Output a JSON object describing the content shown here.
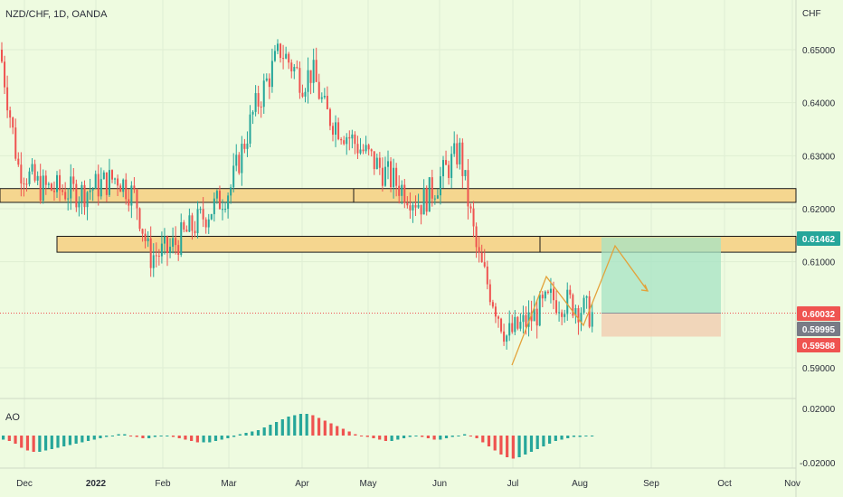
{
  "header": {
    "title": "NZD/CHF, 1D, OANDA"
  },
  "indicator": {
    "label": "AO"
  },
  "chart_data": [
    {
      "type": "candlestick",
      "title": "NZD/CHF, 1D, OANDA",
      "currency": "CHF",
      "ylim": [
        0.5865,
        0.6565
      ],
      "yticks": [
        "0.65000",
        "0.64000",
        "0.63000",
        "0.62000",
        "0.61000",
        "0.59000"
      ],
      "ytick_values": [
        0.65,
        0.64,
        0.63,
        0.62,
        0.61,
        0.59
      ],
      "xticks": [
        "Dec",
        "2022",
        "Feb",
        "Mar",
        "Apr",
        "May",
        "Jun",
        "Jul",
        "Aug",
        "Sep",
        "Oct",
        "Nov"
      ],
      "price_badges": [
        {
          "text": "0.61462",
          "value": 0.61462,
          "color": "#26a69a"
        },
        {
          "text": "0.60032",
          "value": 0.60032,
          "color": "#ef5350"
        },
        {
          "text": "0.59995",
          "value": 0.59995,
          "color": "#787b86"
        },
        {
          "text": "0.59588",
          "value": 0.59588,
          "color": "#ef5350"
        }
      ],
      "zones": [
        {
          "from": "Dec",
          "to": "Nov",
          "low": 0.6212,
          "high": 0.6238
        },
        {
          "from": "Jan",
          "to": "Nov",
          "low": 0.6118,
          "high": 0.6148
        }
      ],
      "position": {
        "entry": 0.60032,
        "target": 0.61462,
        "stop": 0.59588
      },
      "close_trace": [
        {
          "x": "Dec",
          "y": 0.65
        },
        {
          "x": "Dec",
          "y": 0.628
        },
        {
          "x": "Dec",
          "y": 0.624
        },
        {
          "x": "2022",
          "y": 0.623
        },
        {
          "x": "Jan",
          "y": 0.626
        },
        {
          "x": "Jan",
          "y": 0.622
        },
        {
          "x": "Feb",
          "y": 0.611
        },
        {
          "x": "Feb",
          "y": 0.612
        },
        {
          "x": "Feb",
          "y": 0.621
        },
        {
          "x": "Mar",
          "y": 0.624
        },
        {
          "x": "Mar",
          "y": 0.638
        },
        {
          "x": "Mar",
          "y": 0.65
        },
        {
          "x": "Apr",
          "y": 0.644
        },
        {
          "x": "Apr",
          "y": 0.646
        },
        {
          "x": "Apr",
          "y": 0.638
        },
        {
          "x": "May",
          "y": 0.632
        },
        {
          "x": "May",
          "y": 0.626
        },
        {
          "x": "May",
          "y": 0.621
        },
        {
          "x": "Jun",
          "y": 0.624
        },
        {
          "x": "Jun",
          "y": 0.631
        },
        {
          "x": "Jun",
          "y": 0.611
        },
        {
          "x": "Jul",
          "y": 0.596
        },
        {
          "x": "Jul",
          "y": 0.599
        },
        {
          "x": "Jul",
          "y": 0.603
        },
        {
          "x": "Aug",
          "y": 0.602
        },
        {
          "x": "Aug",
          "y": 0.6
        }
      ]
    },
    {
      "type": "bar",
      "title": "AO",
      "ylim": [
        -0.0225,
        0.024
      ],
      "yticks": [
        "0.02000",
        "-0.02000"
      ],
      "ytick_values": [
        0.02,
        -0.02
      ],
      "series": [
        {
          "values": [
            -0.003,
            -0.004,
            -0.006,
            -0.009,
            -0.011,
            -0.012,
            -0.012,
            -0.011,
            -0.01,
            -0.009,
            -0.008,
            -0.007,
            -0.006,
            -0.005,
            -0.004,
            -0.003,
            -0.002,
            -0.001,
            0.0,
            0.001,
            0.001,
            0.0,
            -0.001,
            -0.002,
            -0.002,
            -0.001,
            0.0,
            0.0,
            -0.001,
            -0.002,
            -0.003,
            -0.004,
            -0.005,
            -0.005,
            -0.005,
            -0.004,
            -0.003,
            -0.002,
            -0.001,
            0.001,
            0.002,
            0.003,
            0.004,
            0.006,
            0.008,
            0.01,
            0.012,
            0.014,
            0.015,
            0.016,
            0.016,
            0.015,
            0.013,
            0.011,
            0.009,
            0.007,
            0.005,
            0.003,
            0.001,
            0.0,
            -0.001,
            -0.002,
            -0.003,
            -0.004,
            -0.004,
            -0.003,
            -0.002,
            -0.001,
            0.0,
            -0.001,
            -0.002,
            -0.003,
            -0.003,
            -0.002,
            -0.001,
            0.0,
            0.001,
            0.0,
            -0.002,
            -0.005,
            -0.008,
            -0.011,
            -0.014,
            -0.016,
            -0.017,
            -0.016,
            -0.014,
            -0.012,
            -0.01,
            -0.008,
            -0.006,
            -0.004,
            -0.003,
            -0.002,
            -0.001,
            -0.001,
            0.0,
            0.0
          ]
        }
      ]
    }
  ]
}
